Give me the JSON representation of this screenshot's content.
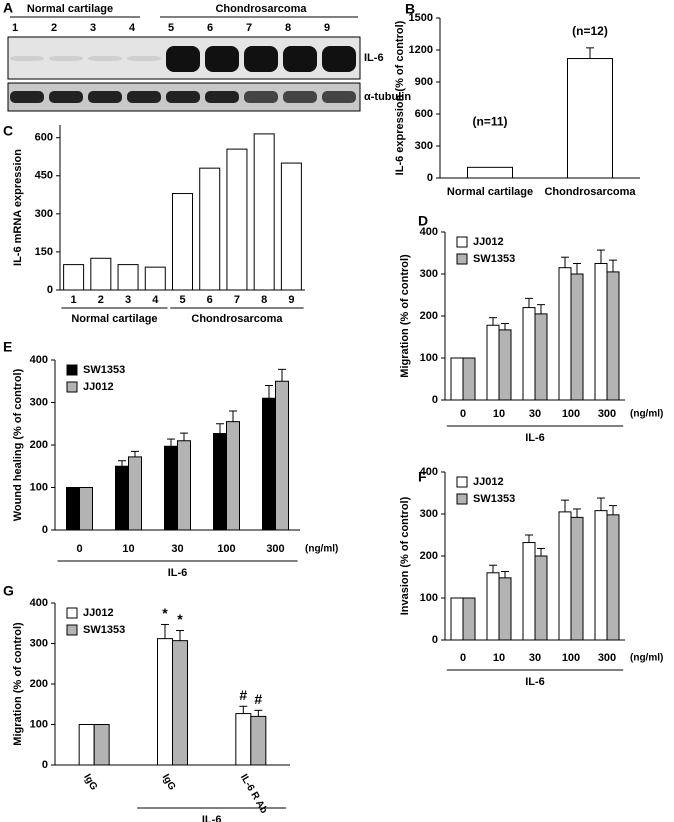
{
  "blot": {
    "label": "A",
    "groups": [
      "Normal cartilage",
      "Chondrosarcoma"
    ],
    "lanes": [
      "1",
      "2",
      "3",
      "4",
      "5",
      "6",
      "7",
      "8",
      "9"
    ],
    "rows": [
      "IL-6",
      "α-tubulin"
    ]
  },
  "chart_data": [
    {
      "type": "bar",
      "label": "B",
      "ylabel": "IL-6 expression (% of control)",
      "categories": [
        "Normal cartilage",
        "Chondrosarcoma"
      ],
      "values": [
        100,
        1120
      ],
      "errors": [
        null,
        100
      ],
      "annotations": [
        "(n=11)",
        "(n=12)"
      ],
      "color": "#ffffff",
      "ylim": [
        0,
        1500
      ],
      "yticks": [
        0,
        300,
        600,
        900,
        1200,
        1500
      ]
    },
    {
      "type": "bar",
      "label": "C",
      "ylabel": "IL-6 mRNA expression",
      "categories": [
        "1",
        "2",
        "3",
        "4",
        "5",
        "6",
        "7",
        "8",
        "9"
      ],
      "values": [
        100,
        125,
        100,
        90,
        380,
        480,
        555,
        615,
        500
      ],
      "x_groups": [
        "Normal cartilage",
        "Chondrosarcoma"
      ],
      "color": "#ffffff",
      "ylim": [
        0,
        650
      ],
      "yticks": [
        0,
        150,
        300,
        450,
        600
      ]
    },
    {
      "type": "bar",
      "label": "D",
      "ylabel": "Migration (% of control)",
      "xlabel": "IL-6",
      "x_unit": "(ng/ml)",
      "categories": [
        "0",
        "10",
        "30",
        "100",
        "300"
      ],
      "legend": "upper left",
      "series": [
        {
          "name": "JJ012",
          "color": "#ffffff",
          "values": [
            100,
            178,
            220,
            315,
            325
          ],
          "errors": [
            null,
            18,
            22,
            25,
            32
          ]
        },
        {
          "name": "SW1353",
          "color": "#b3b3b3",
          "values": [
            100,
            167,
            205,
            300,
            305
          ],
          "errors": [
            null,
            15,
            22,
            25,
            28
          ]
        }
      ],
      "ylim": [
        0,
        400
      ],
      "yticks": [
        0,
        100,
        200,
        300,
        400
      ]
    },
    {
      "type": "bar",
      "label": "E",
      "ylabel": "Wound healing (% of control)",
      "xlabel": "IL-6",
      "x_unit": "(ng/ml)",
      "categories": [
        "0",
        "10",
        "30",
        "100",
        "300"
      ],
      "legend": "upper left",
      "series": [
        {
          "name": "SW1353",
          "color": "#000000",
          "values": [
            100,
            150,
            197,
            227,
            310
          ],
          "errors": [
            null,
            13,
            17,
            23,
            30
          ]
        },
        {
          "name": "JJ012",
          "color": "#b3b3b3",
          "values": [
            100,
            172,
            210,
            255,
            350
          ],
          "errors": [
            null,
            13,
            18,
            25,
            28
          ]
        }
      ],
      "ylim": [
        0,
        400
      ],
      "yticks": [
        0,
        100,
        200,
        300,
        400
      ]
    },
    {
      "type": "bar",
      "label": "F",
      "ylabel": "Invasion (% of control)",
      "xlabel": "IL-6",
      "x_unit": "(ng/ml)",
      "categories": [
        "0",
        "10",
        "30",
        "100",
        "300"
      ],
      "legend": "upper left",
      "series": [
        {
          "name": "JJ012",
          "color": "#ffffff",
          "values": [
            100,
            160,
            232,
            305,
            308
          ],
          "errors": [
            null,
            18,
            18,
            28,
            30
          ]
        },
        {
          "name": "SW1353",
          "color": "#b3b3b3",
          "values": [
            100,
            148,
            200,
            292,
            298
          ],
          "errors": [
            null,
            15,
            18,
            20,
            22
          ]
        }
      ],
      "ylim": [
        0,
        400
      ],
      "yticks": [
        0,
        100,
        200,
        300,
        400
      ]
    },
    {
      "type": "bar",
      "label": "G",
      "ylabel": "Migration (% of control)",
      "xlabel": "IL-6",
      "categories": [
        "IgG",
        "IgG",
        "IL-6 R Ab"
      ],
      "legend": "upper left",
      "series": [
        {
          "name": "JJ012",
          "color": "#ffffff",
          "values": [
            100,
            312,
            127
          ],
          "errors": [
            null,
            35,
            18
          ],
          "significance": [
            null,
            "*",
            "#"
          ]
        },
        {
          "name": "SW1353",
          "color": "#b3b3b3",
          "values": [
            100,
            307,
            120
          ],
          "errors": [
            null,
            25,
            15
          ],
          "significance": [
            null,
            "*",
            "#"
          ]
        }
      ],
      "ylim": [
        0,
        400
      ],
      "yticks": [
        0,
        100,
        200,
        300,
        400
      ]
    }
  ]
}
